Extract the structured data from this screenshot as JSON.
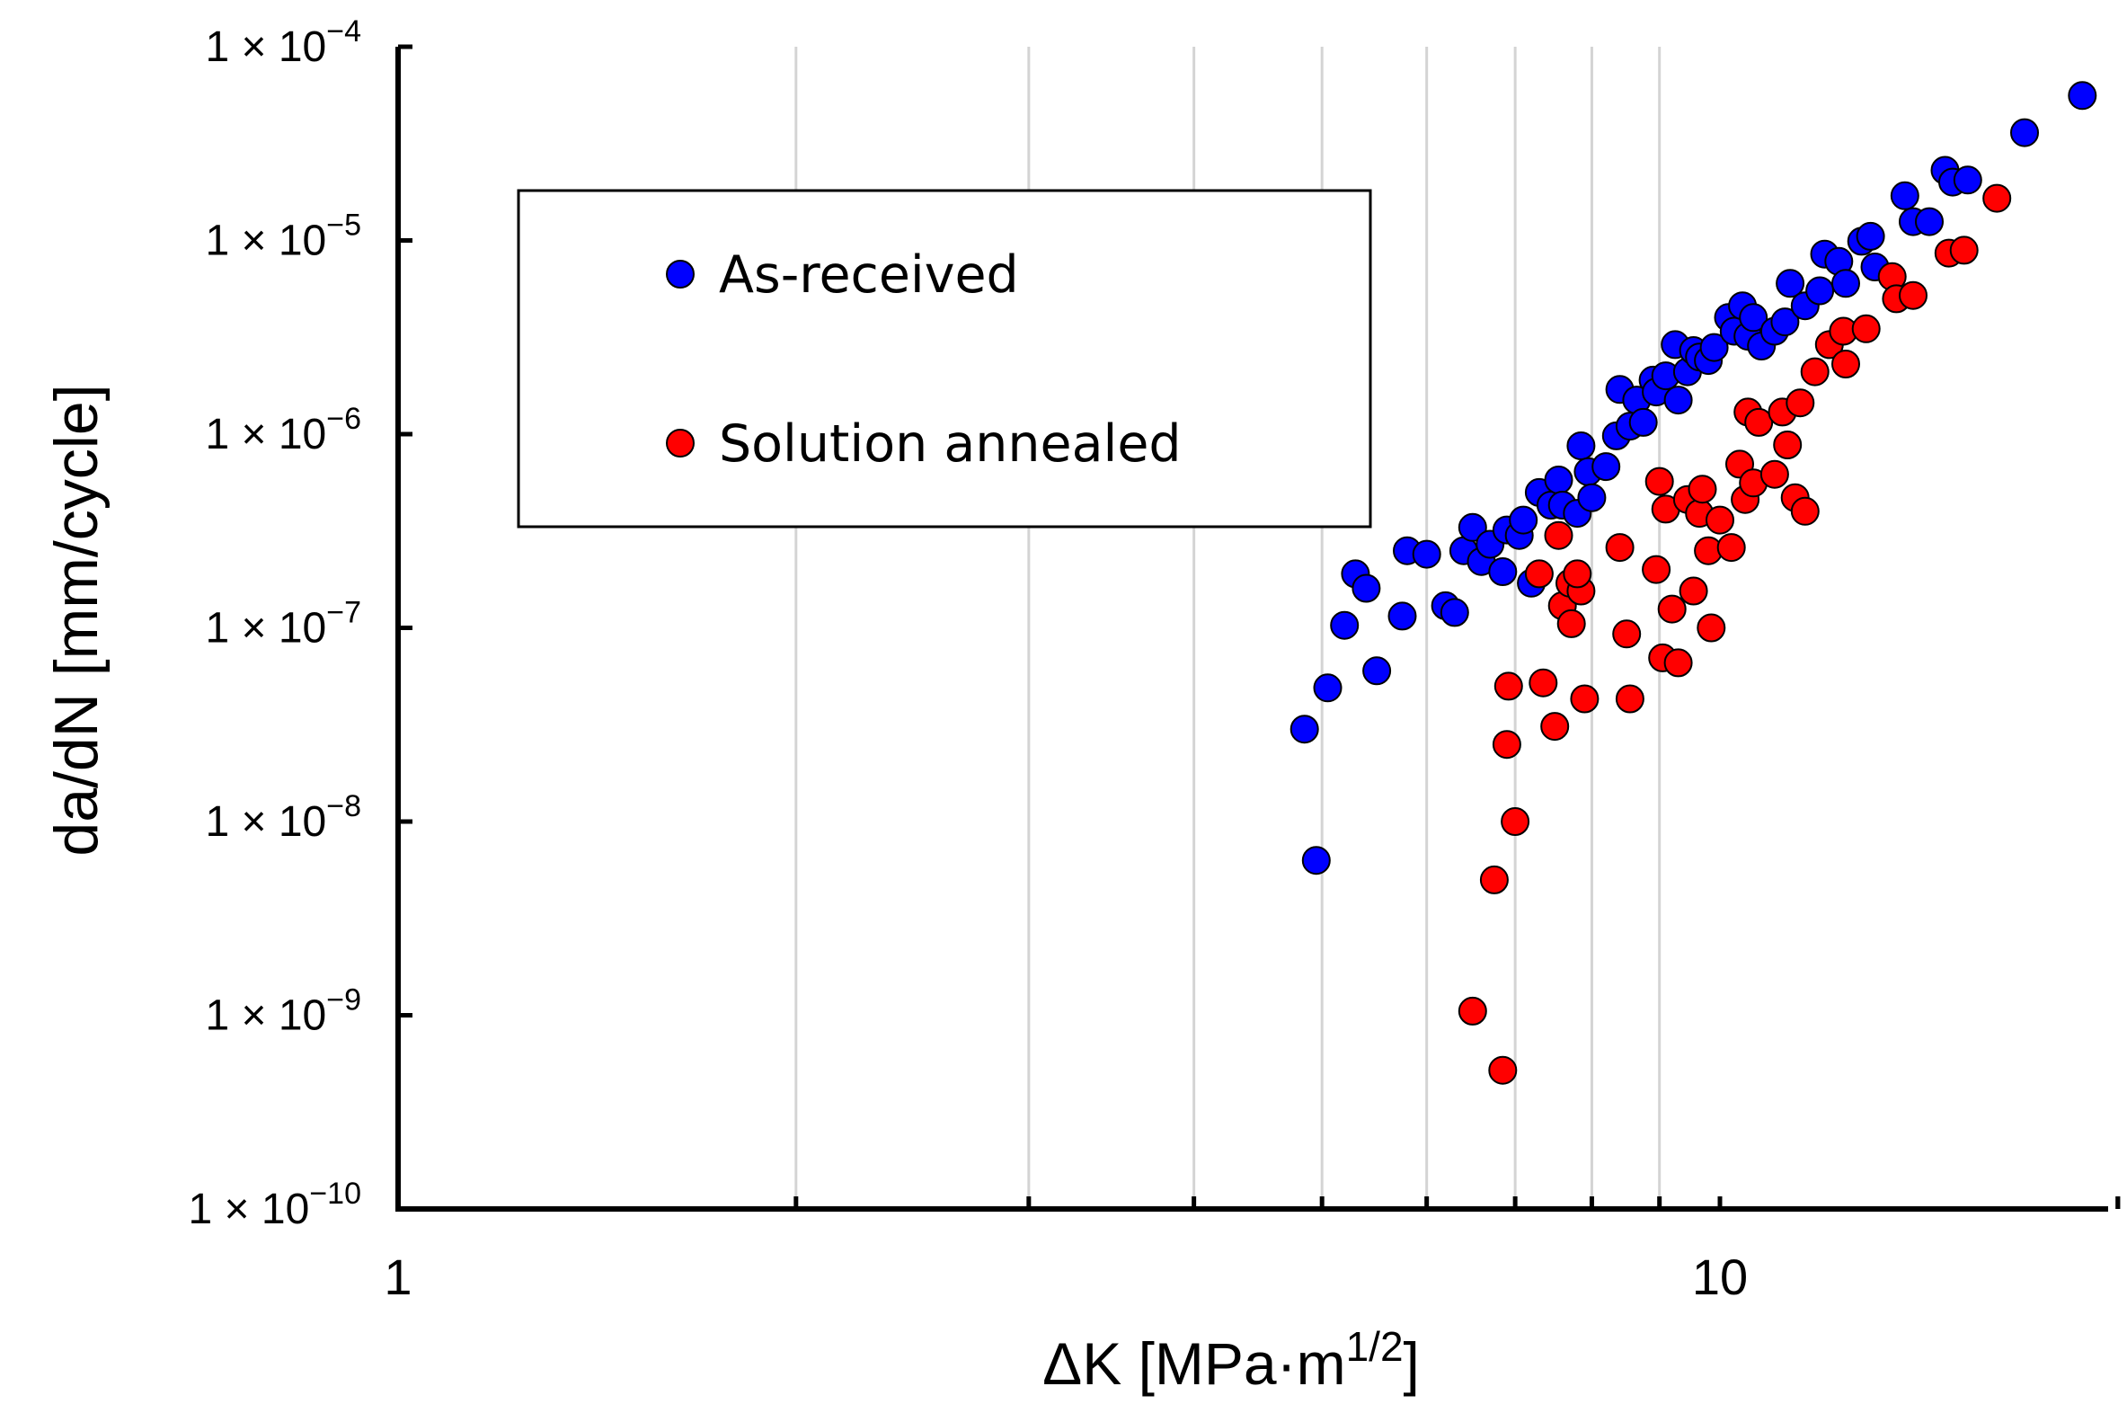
{
  "chart_data": {
    "type": "scatter",
    "title": "",
    "xlabel": {
      "base": "ΔK [MPa·m",
      "sup": "1/2",
      "tail": "]"
    },
    "ylabel": "da/dN [mm/cycle]",
    "xscale": "log",
    "yscale": "log",
    "xlim": [
      1,
      20
    ],
    "ylim": [
      1e-10,
      0.0001
    ],
    "grid": {
      "x_minor_lines": true,
      "y_lines": false
    },
    "x_tick_labels": [
      {
        "value": 1,
        "label": "1"
      },
      {
        "value": 10,
        "label": "10"
      }
    ],
    "y_tick_labels": [
      {
        "value": 0.0001,
        "base": "1 × 10",
        "exp": "−4"
      },
      {
        "value": 1e-05,
        "base": "1 × 10",
        "exp": "−5"
      },
      {
        "value": 1e-06,
        "base": "1 × 10",
        "exp": "−6"
      },
      {
        "value": 1e-07,
        "base": "1 × 10",
        "exp": "−7"
      },
      {
        "value": 1e-08,
        "base": "1 × 10",
        "exp": "−8"
      },
      {
        "value": 1e-09,
        "base": "1 × 10",
        "exp": "−9"
      },
      {
        "value": 1e-10,
        "base": "1 × 10",
        "exp": "−10"
      }
    ],
    "legend_position": "upper-left",
    "series": [
      {
        "name": "As-received",
        "color": "#0000ff",
        "points": [
          [
            4.85,
            3e-08
          ],
          [
            4.95,
            6.3e-09
          ],
          [
            5.05,
            4.9e-08
          ],
          [
            5.2,
            1.03e-07
          ],
          [
            5.3,
            1.9e-07
          ],
          [
            5.4,
            1.6e-07
          ],
          [
            5.5,
            6e-08
          ],
          [
            5.75,
            1.15e-07
          ],
          [
            5.8,
            2.5e-07
          ],
          [
            6.0,
            2.4e-07
          ],
          [
            6.2,
            1.3e-07
          ],
          [
            6.3,
            1.2e-07
          ],
          [
            6.4,
            2.5e-07
          ],
          [
            6.5,
            3.3e-07
          ],
          [
            6.6,
            2.2e-07
          ],
          [
            6.7,
            2.7e-07
          ],
          [
            6.85,
            1.95e-07
          ],
          [
            6.9,
            3.2e-07
          ],
          [
            7.05,
            3e-07
          ],
          [
            7.1,
            3.6e-07
          ],
          [
            7.2,
            1.7e-07
          ],
          [
            7.3,
            5e-07
          ],
          [
            7.45,
            4.3e-07
          ],
          [
            7.55,
            5.8e-07
          ],
          [
            7.6,
            4.3e-07
          ],
          [
            7.8,
            3.9e-07
          ],
          [
            7.85,
            8.7e-07
          ],
          [
            7.95,
            6.4e-07
          ],
          [
            8.0,
            4.7e-07
          ],
          [
            8.2,
            6.8e-07
          ],
          [
            8.35,
            9.8e-07
          ],
          [
            8.4,
            1.7e-06
          ],
          [
            8.55,
            1.1e-06
          ],
          [
            8.65,
            1.5e-06
          ],
          [
            8.75,
            1.15e-06
          ],
          [
            8.9,
            1.9e-06
          ],
          [
            8.95,
            1.65e-06
          ],
          [
            9.1,
            2e-06
          ],
          [
            9.25,
            2.9e-06
          ],
          [
            9.3,
            1.5e-06
          ],
          [
            9.45,
            2.1e-06
          ],
          [
            9.55,
            2.7e-06
          ],
          [
            9.65,
            2.5e-06
          ],
          [
            9.8,
            2.4e-06
          ],
          [
            9.9,
            2.8e-06
          ],
          [
            10.15,
            4e-06
          ],
          [
            10.25,
            3.4e-06
          ],
          [
            10.4,
            4.6e-06
          ],
          [
            10.5,
            3.2e-06
          ],
          [
            10.6,
            4e-06
          ],
          [
            10.75,
            2.85e-06
          ],
          [
            11.0,
            3.4e-06
          ],
          [
            11.2,
            3.8e-06
          ],
          [
            11.3,
            6e-06
          ],
          [
            11.6,
            4.6e-06
          ],
          [
            11.9,
            5.5e-06
          ],
          [
            12.0,
            8.5e-06
          ],
          [
            12.3,
            7.8e-06
          ],
          [
            12.45,
            6e-06
          ],
          [
            12.8,
            9.9e-06
          ],
          [
            13.0,
            1.05e-05
          ],
          [
            13.1,
            7.3e-06
          ],
          [
            13.8,
            1.7e-05
          ],
          [
            14.0,
            1.25e-05
          ],
          [
            14.4,
            1.25e-05
          ],
          [
            14.8,
            2.3e-05
          ],
          [
            15.0,
            2e-05
          ],
          [
            15.4,
            2.05e-05
          ],
          [
            17.0,
            3.6e-05
          ],
          [
            18.8,
            5.6e-05
          ]
        ]
      },
      {
        "name": "Solution annealed",
        "color": "#ff0000",
        "points": [
          [
            6.5,
            1.05e-09
          ],
          [
            6.75,
            5e-09
          ],
          [
            6.85,
            5.2e-10
          ],
          [
            6.9,
            2.5e-08
          ],
          [
            6.92,
            5e-08
          ],
          [
            7.0,
            1e-08
          ],
          [
            7.35,
            5.2e-08
          ],
          [
            7.5,
            3.1e-08
          ],
          [
            7.3,
            1.9e-07
          ],
          [
            7.55,
            3e-07
          ],
          [
            7.6,
            1.3e-07
          ],
          [
            7.7,
            1.7e-07
          ],
          [
            7.72,
            1.05e-07
          ],
          [
            7.85,
            1.55e-07
          ],
          [
            7.9,
            4.3e-08
          ],
          [
            7.8,
            1.9e-07
          ],
          [
            8.4,
            2.6e-07
          ],
          [
            8.5,
            9.3e-08
          ],
          [
            8.55,
            4.3e-08
          ],
          [
            8.95,
            2e-07
          ],
          [
            9.0,
            5.7e-07
          ],
          [
            9.05,
            7e-08
          ],
          [
            9.1,
            4.1e-07
          ],
          [
            9.3,
            6.6e-08
          ],
          [
            9.2,
            1.25e-07
          ],
          [
            9.45,
            4.6e-07
          ],
          [
            9.55,
            1.55e-07
          ],
          [
            9.65,
            3.9e-07
          ],
          [
            9.7,
            5.2e-07
          ],
          [
            9.8,
            2.5e-07
          ],
          [
            9.85,
            1e-07
          ],
          [
            10.0,
            3.6e-07
          ],
          [
            10.2,
            2.6e-07
          ],
          [
            10.35,
            7e-07
          ],
          [
            10.45,
            4.6e-07
          ],
          [
            10.5,
            1.3e-06
          ],
          [
            10.6,
            5.6e-07
          ],
          [
            10.7,
            1.15e-06
          ],
          [
            11.0,
            6.2e-07
          ],
          [
            11.15,
            1.3e-06
          ],
          [
            11.25,
            8.8e-07
          ],
          [
            11.4,
            4.7e-07
          ],
          [
            11.5,
            1.45e-06
          ],
          [
            11.6,
            4e-07
          ],
          [
            11.8,
            2.1e-06
          ],
          [
            12.1,
            2.9e-06
          ],
          [
            12.4,
            3.4e-06
          ],
          [
            12.45,
            2.3e-06
          ],
          [
            12.9,
            3.5e-06
          ],
          [
            13.5,
            6.5e-06
          ],
          [
            13.6,
            5e-06
          ],
          [
            14.0,
            5.2e-06
          ],
          [
            14.9,
            8.6e-06
          ],
          [
            15.3,
            8.9e-06
          ],
          [
            16.2,
            1.65e-05
          ]
        ]
      }
    ]
  }
}
